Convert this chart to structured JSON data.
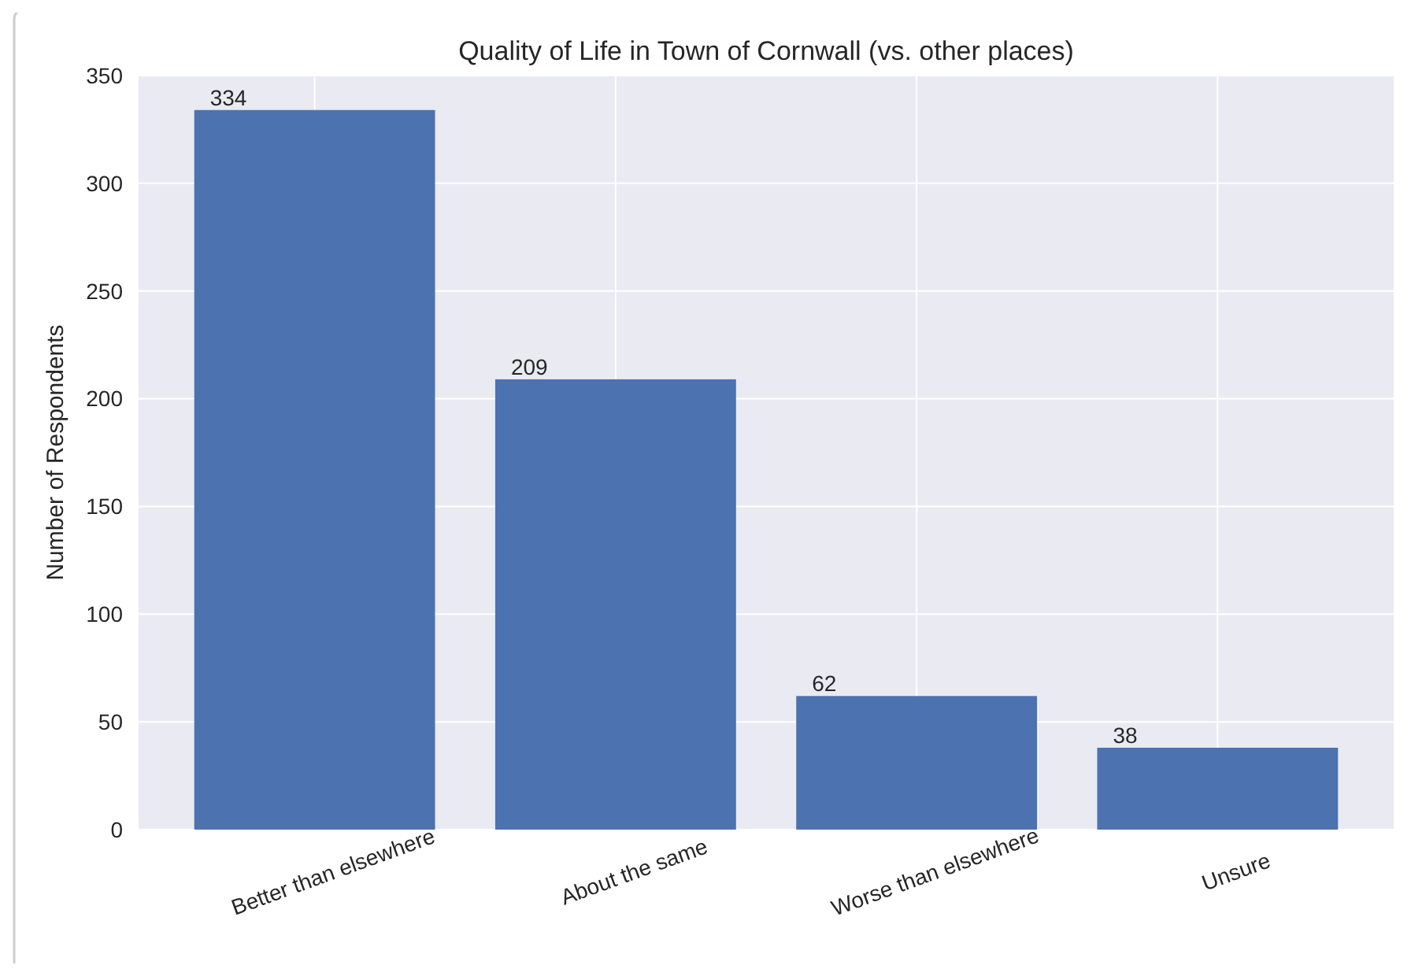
{
  "chart_data": {
    "type": "bar",
    "title": "Quality of Life in Town of Cornwall (vs. other places)",
    "ylabel": "Number of Respondents",
    "categories": [
      "Better than elsewhere",
      "About the same",
      "Worse than elsewhere",
      "Unsure"
    ],
    "values": [
      334,
      209,
      62,
      38
    ],
    "color": "#4c72b0",
    "ylim": [
      0,
      350
    ],
    "yticks": [
      0,
      50,
      100,
      150,
      200,
      250,
      300,
      350
    ],
    "grid": true,
    "data_labels": true
  }
}
